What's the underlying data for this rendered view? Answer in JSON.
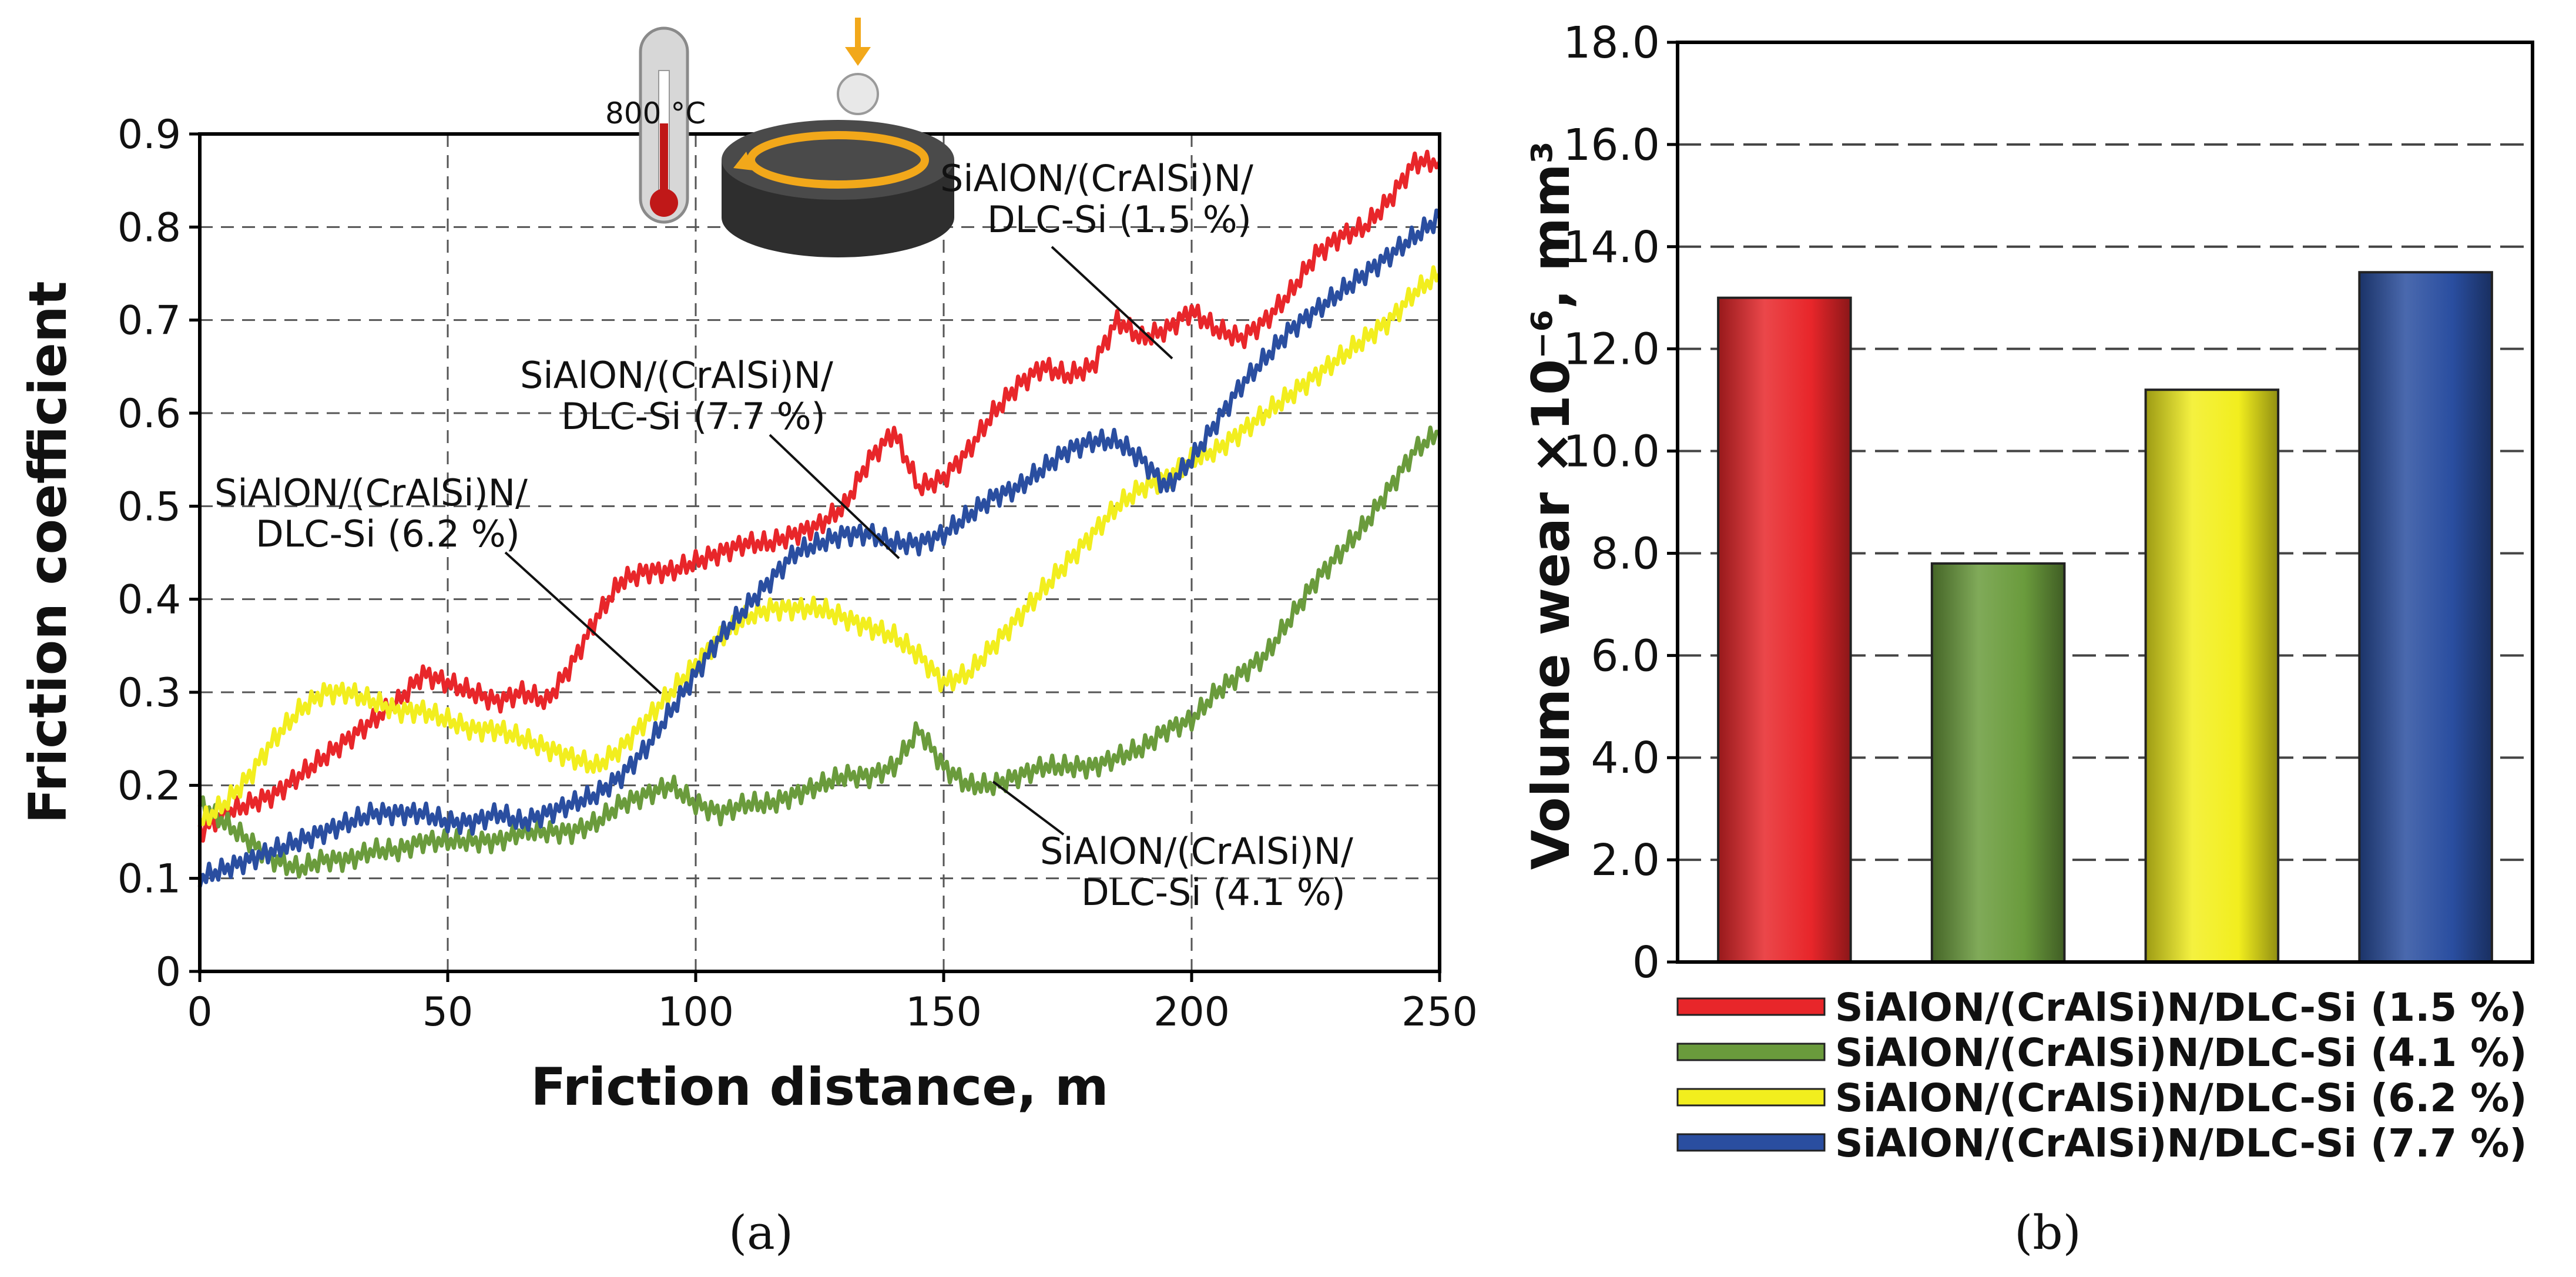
{
  "chart_data": [
    {
      "type": "line",
      "panel_label": "(a)",
      "xlabel": "Friction distance, m",
      "ylabel": "Friction coefficient",
      "xlim": [
        0,
        250
      ],
      "ylim": [
        0,
        0.9
      ],
      "x_ticks": [
        "0",
        "50",
        "100",
        "150",
        "200",
        "250"
      ],
      "y_ticks": [
        "0",
        "0.1",
        "0.2",
        "0.3",
        "0.4",
        "0.5",
        "0.6",
        "0.7",
        "0.8",
        "0.9"
      ],
      "grid": true,
      "inset_label": "800 °C",
      "x": [
        0,
        5,
        10,
        15,
        20,
        25,
        30,
        35,
        40,
        45,
        50,
        55,
        60,
        65,
        70,
        75,
        80,
        85,
        90,
        95,
        100,
        105,
        110,
        115,
        120,
        125,
        130,
        135,
        140,
        145,
        150,
        155,
        160,
        165,
        170,
        175,
        180,
        185,
        190,
        195,
        200,
        205,
        210,
        215,
        220,
        225,
        230,
        235,
        240,
        245,
        250
      ],
      "series": [
        {
          "name": "SiAlON/(CrAlSi)N/ DLC-Si (1.5 %)",
          "color": "#e8262a",
          "values": [
            0.15,
            0.17,
            0.18,
            0.19,
            0.21,
            0.23,
            0.25,
            0.27,
            0.29,
            0.32,
            0.31,
            0.3,
            0.29,
            0.3,
            0.29,
            0.33,
            0.38,
            0.42,
            0.43,
            0.43,
            0.44,
            0.45,
            0.46,
            0.46,
            0.47,
            0.48,
            0.5,
            0.55,
            0.58,
            0.52,
            0.53,
            0.56,
            0.6,
            0.63,
            0.65,
            0.64,
            0.65,
            0.7,
            0.68,
            0.69,
            0.71,
            0.69,
            0.68,
            0.7,
            0.73,
            0.77,
            0.79,
            0.8,
            0.83,
            0.87,
            0.87
          ]
        },
        {
          "name": "SiAlON/(CrAlSi)N/ DLC-Si (4.1 %)",
          "color": "#6a9b3c",
          "values": [
            0.18,
            0.16,
            0.14,
            0.12,
            0.11,
            0.12,
            0.12,
            0.13,
            0.13,
            0.14,
            0.14,
            0.14,
            0.14,
            0.15,
            0.15,
            0.15,
            0.16,
            0.18,
            0.19,
            0.2,
            0.18,
            0.17,
            0.18,
            0.18,
            0.19,
            0.2,
            0.21,
            0.21,
            0.22,
            0.26,
            0.22,
            0.2,
            0.2,
            0.21,
            0.22,
            0.22,
            0.22,
            0.23,
            0.24,
            0.26,
            0.27,
            0.3,
            0.32,
            0.34,
            0.38,
            0.42,
            0.45,
            0.48,
            0.52,
            0.56,
            0.58
          ]
        },
        {
          "name": "SiAlON/(CrAlSi)N/ DLC-Si (6.2 %)",
          "color": "#f2ee1e",
          "values": [
            0.16,
            0.18,
            0.21,
            0.25,
            0.28,
            0.3,
            0.3,
            0.29,
            0.28,
            0.28,
            0.27,
            0.26,
            0.26,
            0.25,
            0.24,
            0.23,
            0.22,
            0.24,
            0.27,
            0.3,
            0.33,
            0.36,
            0.38,
            0.39,
            0.39,
            0.39,
            0.38,
            0.37,
            0.36,
            0.34,
            0.31,
            0.32,
            0.35,
            0.38,
            0.41,
            0.44,
            0.47,
            0.5,
            0.52,
            0.53,
            0.55,
            0.56,
            0.58,
            0.6,
            0.62,
            0.64,
            0.66,
            0.68,
            0.7,
            0.73,
            0.75
          ]
        },
        {
          "name": "SiAlON/(CrAlSi)N/ DLC-Si (7.7 %)",
          "color": "#2a4ea0",
          "values": [
            0.1,
            0.11,
            0.12,
            0.13,
            0.14,
            0.15,
            0.16,
            0.17,
            0.17,
            0.17,
            0.16,
            0.16,
            0.17,
            0.16,
            0.17,
            0.18,
            0.19,
            0.21,
            0.24,
            0.28,
            0.32,
            0.36,
            0.39,
            0.42,
            0.45,
            0.46,
            0.47,
            0.47,
            0.46,
            0.46,
            0.47,
            0.49,
            0.51,
            0.52,
            0.54,
            0.56,
            0.57,
            0.57,
            0.55,
            0.52,
            0.55,
            0.59,
            0.63,
            0.66,
            0.69,
            0.71,
            0.73,
            0.75,
            0.77,
            0.79,
            0.81
          ]
        }
      ],
      "annotations": [
        {
          "line1": "SiAlON/(CrAlSi)N/",
          "line2": "DLC-Si (1.5 %)"
        },
        {
          "line1": "SiAlON/(CrAlSi)N/",
          "line2": "DLC-Si (7.7 %)"
        },
        {
          "line1": "SiAlON/(CrAlSi)N/",
          "line2": "DLC-Si (6.2 %)"
        },
        {
          "line1": "SiAlON/(CrAlSi)N/",
          "line2": "DLC-Si (4.1 %)"
        }
      ]
    },
    {
      "type": "bar",
      "panel_label": "(b)",
      "ylabel": "Volume wear ×10⁻⁶, mm³",
      "ylim": [
        0,
        18
      ],
      "y_ticks": [
        "0",
        "2.0",
        "4.0",
        "6.0",
        "8.0",
        "10.0",
        "12.0",
        "14.0",
        "16.0",
        "18.0"
      ],
      "grid": true,
      "legend_position": "bottom",
      "categories": [
        "SiAlON/(CrAlSi)N/DLC-Si (1.5 %)",
        "SiAlON/(CrAlSi)N/DLC-Si (4.1 %)",
        "SiAlON/(CrAlSi)N/DLC-Si (6.2 %)",
        "SiAlON/(CrAlSi)N/DLC-Si (7.7 %)"
      ],
      "values": [
        13.0,
        7.8,
        11.2,
        13.5
      ],
      "colors": [
        "#e8262a",
        "#6a9b3c",
        "#f2ee1e",
        "#2a4ea0"
      ]
    }
  ]
}
